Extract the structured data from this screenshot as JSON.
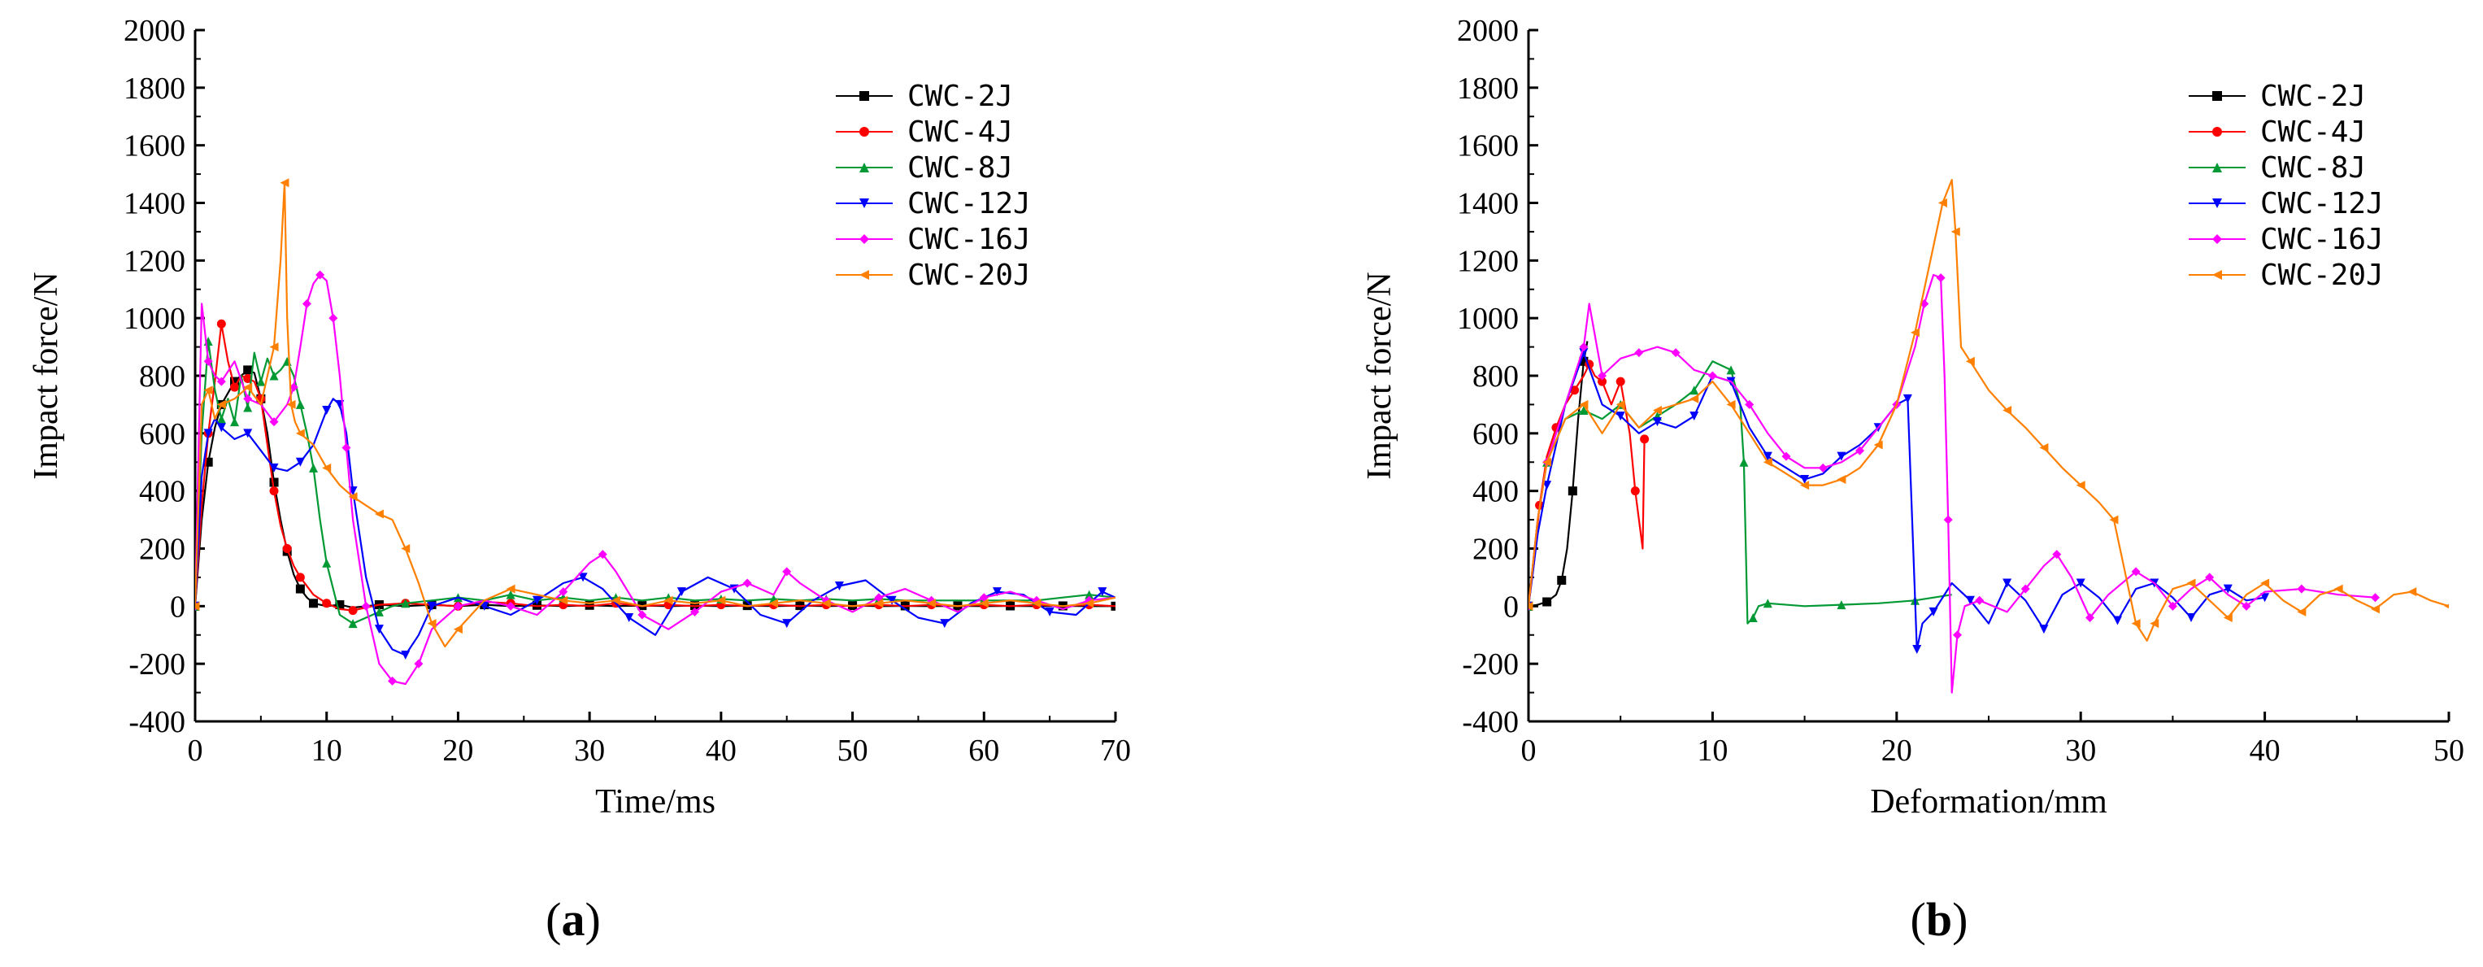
{
  "chart_data": [
    {
      "type": "line",
      "panel_label": "a",
      "xlabel": "Time/ms",
      "ylabel": "Impact force/N",
      "xlim": [
        0,
        70
      ],
      "ylim": [
        -400,
        2000
      ],
      "x_ticks": [
        0,
        10,
        20,
        30,
        40,
        50,
        60,
        70
      ],
      "y_ticks": [
        -400,
        -200,
        0,
        200,
        400,
        600,
        800,
        1000,
        1200,
        1400,
        1600,
        1800,
        2000
      ],
      "legend_position": "top-right",
      "series": [
        {
          "name": "CWC-2J",
          "color": "#000000",
          "marker": "square",
          "x": [
            0,
            0.5,
            1,
            1.5,
            2,
            2.5,
            3,
            3.5,
            4,
            4.5,
            5,
            5.5,
            6,
            6.5,
            7,
            7.5,
            8,
            8.5,
            9,
            10,
            11,
            12,
            14,
            16,
            18,
            20,
            22,
            24,
            26,
            28,
            30,
            32,
            34,
            36,
            38,
            40,
            42,
            44,
            46,
            48,
            50,
            52,
            54,
            56,
            58,
            60,
            62,
            64,
            66,
            68,
            70
          ],
          "y": [
            0,
            300,
            500,
            620,
            700,
            740,
            780,
            800,
            820,
            810,
            720,
            600,
            430,
            300,
            190,
            110,
            60,
            30,
            10,
            0,
            5,
            -5,
            5,
            0,
            5,
            0,
            5,
            0,
            3,
            0,
            3,
            0,
            2,
            0,
            2,
            0,
            2,
            0,
            2,
            0,
            2,
            0,
            1,
            0,
            1,
            0,
            1,
            0,
            1,
            0,
            0
          ]
        },
        {
          "name": "CWC-4J",
          "color": "#ff0000",
          "marker": "circle",
          "x": [
            0,
            0.5,
            1,
            1.5,
            2,
            2.5,
            3,
            3.5,
            4,
            4.5,
            5,
            5.5,
            6,
            6.5,
            7,
            7.5,
            8,
            9,
            10,
            11,
            12,
            14,
            16,
            18,
            20,
            22,
            24,
            26,
            28,
            30,
            32,
            34,
            36,
            38,
            40,
            42,
            44,
            46,
            48,
            50,
            52,
            54,
            56,
            58,
            60,
            62,
            64,
            66,
            68,
            70
          ],
          "y": [
            0,
            350,
            600,
            780,
            980,
            850,
            760,
            800,
            790,
            780,
            720,
            560,
            400,
            280,
            200,
            140,
            100,
            40,
            10,
            -10,
            -15,
            5,
            10,
            5,
            0,
            15,
            10,
            0,
            5,
            0,
            10,
            0,
            5,
            0,
            5,
            0,
            5,
            0,
            5,
            0,
            5,
            0,
            5,
            0,
            5,
            0,
            5,
            0,
            5,
            0
          ]
        },
        {
          "name": "CWC-8J",
          "color": "#009933",
          "marker": "triangle-up",
          "x": [
            0,
            0.5,
            1,
            1.5,
            2,
            2.5,
            3,
            3.5,
            4,
            4.5,
            5,
            5.5,
            6,
            6.5,
            7,
            7.5,
            8,
            8.5,
            9,
            9.5,
            10,
            11,
            12,
            13,
            14,
            15,
            16,
            18,
            20,
            22,
            24,
            26,
            28,
            30,
            32,
            34,
            36,
            38,
            40,
            42,
            44,
            46,
            48,
            50,
            52,
            54,
            56,
            58,
            60,
            62,
            64,
            66,
            68,
            70
          ],
          "y": [
            0,
            600,
            920,
            750,
            650,
            720,
            640,
            800,
            690,
            880,
            780,
            860,
            800,
            820,
            850,
            800,
            700,
            600,
            480,
            300,
            150,
            -30,
            -60,
            -40,
            -20,
            0,
            10,
            20,
            30,
            20,
            40,
            20,
            30,
            20,
            30,
            20,
            30,
            20,
            25,
            20,
            25,
            20,
            25,
            20,
            25,
            20,
            20,
            20,
            20,
            20,
            20,
            30,
            40,
            30
          ]
        },
        {
          "name": "CWC-12J",
          "color": "#0000ff",
          "marker": "triangle-down",
          "x": [
            0,
            0.5,
            1,
            1.5,
            2,
            3,
            4,
            5,
            6,
            7,
            8,
            9,
            10,
            10.5,
            11,
            11.5,
            12,
            13,
            14,
            15,
            16,
            17,
            18,
            20,
            22,
            24,
            26,
            28,
            29.5,
            31,
            33,
            35,
            37,
            39,
            41,
            43,
            45,
            47,
            49,
            51,
            53,
            55,
            57,
            59,
            61,
            63,
            65,
            67,
            69,
            70
          ],
          "y": [
            0,
            450,
            600,
            650,
            620,
            580,
            600,
            540,
            480,
            470,
            500,
            560,
            680,
            720,
            700,
            600,
            400,
            100,
            -80,
            -150,
            -170,
            -100,
            0,
            30,
            0,
            -30,
            20,
            80,
            100,
            60,
            -40,
            -100,
            50,
            100,
            60,
            -30,
            -60,
            20,
            70,
            90,
            20,
            -40,
            -60,
            10,
            50,
            40,
            -20,
            -30,
            50,
            30
          ]
        },
        {
          "name": "CWC-16J",
          "color": "#ff00ff",
          "marker": "diamond",
          "x": [
            0,
            0.5,
            1,
            1.5,
            2,
            3,
            4,
            5,
            6,
            7,
            7.5,
            8,
            8.5,
            9,
            9.5,
            10,
            10.5,
            11,
            11.5,
            12,
            13,
            14,
            15,
            16,
            17,
            18,
            20,
            22,
            24,
            26,
            28,
            30,
            31,
            32,
            34,
            36,
            38,
            40,
            42,
            44,
            45,
            46,
            48,
            50,
            52,
            54,
            56,
            58,
            60,
            62,
            64,
            66,
            68,
            70
          ],
          "y": [
            0,
            1050,
            850,
            800,
            780,
            850,
            720,
            700,
            640,
            700,
            760,
            900,
            1050,
            1120,
            1150,
            1130,
            1000,
            800,
            550,
            300,
            0,
            -200,
            -260,
            -270,
            -200,
            -80,
            0,
            20,
            0,
            -30,
            50,
            150,
            180,
            120,
            -30,
            -80,
            -20,
            50,
            80,
            40,
            120,
            80,
            20,
            -20,
            30,
            60,
            20,
            -20,
            30,
            50,
            20,
            -10,
            20,
            30
          ]
        },
        {
          "name": "CWC-20J",
          "color": "#ff8000",
          "marker": "triangle-left",
          "x": [
            0,
            0.5,
            1,
            1.5,
            2,
            3,
            4,
            5,
            6,
            6.5,
            6.8,
            7,
            7.3,
            7.6,
            8,
            9,
            10,
            11,
            12,
            13,
            14,
            15,
            16,
            17,
            18,
            19,
            20,
            22,
            24,
            26,
            28,
            30,
            32,
            34,
            36,
            38,
            40,
            42,
            44,
            46,
            48,
            50,
            52,
            54,
            56,
            58,
            60,
            62,
            64,
            66,
            68,
            70
          ],
          "y": [
            0,
            700,
            750,
            650,
            700,
            720,
            760,
            700,
            900,
            1200,
            1470,
            1000,
            700,
            640,
            600,
            560,
            480,
            420,
            380,
            350,
            320,
            300,
            200,
            80,
            -60,
            -140,
            -80,
            20,
            60,
            40,
            20,
            10,
            20,
            0,
            20,
            10,
            20,
            0,
            10,
            20,
            10,
            0,
            10,
            20,
            10,
            0,
            10,
            20,
            10,
            0,
            10,
            30
          ]
        }
      ]
    },
    {
      "type": "line",
      "panel_label": "b",
      "xlabel": "Deformation/mm",
      "ylabel": "Impact force/N",
      "xlim": [
        0,
        50
      ],
      "ylim": [
        -400,
        2000
      ],
      "x_ticks": [
        0,
        10,
        20,
        30,
        40,
        50
      ],
      "y_ticks": [
        -400,
        -200,
        0,
        200,
        400,
        600,
        800,
        1000,
        1200,
        1400,
        1600,
        1800,
        2000
      ],
      "legend_position": "top-right",
      "series": [
        {
          "name": "CWC-2J",
          "color": "#000000",
          "marker": "square",
          "x": [
            0,
            0.5,
            1,
            1.5,
            1.8,
            2.1,
            2.4,
            2.7,
            3,
            3.2
          ],
          "y": [
            0,
            5,
            15,
            40,
            90,
            200,
            400,
            650,
            850,
            920
          ]
        },
        {
          "name": "CWC-4J",
          "color": "#ff0000",
          "marker": "circle",
          "x": [
            0,
            0.3,
            0.6,
            1,
            1.5,
            2,
            2.5,
            3,
            3.3,
            3.6,
            4,
            4.5,
            5,
            5.5,
            5.8,
            6.2,
            6.3
          ],
          "y": [
            0,
            150,
            350,
            520,
            620,
            700,
            750,
            800,
            840,
            800,
            780,
            700,
            780,
            600,
            400,
            200,
            580
          ]
        },
        {
          "name": "CWC-8J",
          "color": "#009933",
          "marker": "triangle-up",
          "x": [
            0,
            0.5,
            1,
            2,
            3,
            4,
            5,
            6,
            7,
            8,
            9,
            10,
            11,
            11.5,
            11.7,
            11.9,
            12.2,
            12.5,
            13,
            15,
            17,
            19,
            21,
            23
          ],
          "y": [
            0,
            300,
            500,
            650,
            680,
            650,
            700,
            620,
            660,
            700,
            750,
            850,
            820,
            700,
            500,
            -60,
            -40,
            0,
            10,
            0,
            5,
            10,
            20,
            40
          ]
        },
        {
          "name": "CWC-12J",
          "color": "#0000ff",
          "marker": "triangle-down",
          "x": [
            0,
            0.5,
            1,
            2,
            3,
            4,
            5,
            6,
            7,
            8,
            9,
            10,
            11,
            12,
            13,
            14,
            15,
            16,
            17,
            18,
            19,
            20,
            20.6,
            20.9,
            21.1,
            21.4,
            22,
            23,
            24,
            25,
            26,
            27,
            28,
            29,
            30,
            31,
            32,
            33,
            34,
            35,
            36,
            37,
            38,
            39,
            40
          ],
          "y": [
            0,
            250,
            420,
            700,
            880,
            700,
            660,
            600,
            640,
            620,
            660,
            800,
            780,
            620,
            520,
            480,
            440,
            460,
            520,
            560,
            620,
            700,
            720,
            200,
            -150,
            -60,
            -20,
            80,
            20,
            -60,
            80,
            20,
            -80,
            40,
            80,
            30,
            -50,
            60,
            80,
            30,
            -40,
            40,
            60,
            20,
            30
          ]
        },
        {
          "name": "CWC-16J",
          "color": "#ff00ff",
          "marker": "diamond",
          "x": [
            0,
            0.5,
            1,
            2,
            3,
            3.3,
            4,
            5,
            6,
            7,
            8,
            9,
            10,
            11,
            12,
            13,
            14,
            15,
            16,
            17,
            18,
            19,
            20,
            21,
            21.5,
            22,
            22.4,
            22.6,
            22.8,
            23,
            23.3,
            23.7,
            24.5,
            26,
            27,
            28,
            28.7,
            29.5,
            30.5,
            31.5,
            33,
            34,
            35,
            36,
            37,
            38,
            39,
            40,
            42,
            44,
            46
          ],
          "y": [
            0,
            300,
            500,
            700,
            900,
            1050,
            800,
            860,
            880,
            900,
            880,
            820,
            800,
            780,
            700,
            600,
            520,
            480,
            480,
            500,
            540,
            620,
            700,
            900,
            1050,
            1150,
            1140,
            800,
            300,
            -300,
            -100,
            0,
            20,
            -20,
            60,
            140,
            180,
            100,
            -40,
            40,
            120,
            80,
            0,
            60,
            100,
            40,
            0,
            50,
            60,
            40,
            30
          ]
        },
        {
          "name": "CWC-20J",
          "color": "#ff8000",
          "marker": "triangle-left",
          "x": [
            0,
            0.5,
            1,
            2,
            3,
            4,
            5,
            6,
            7,
            8,
            9,
            10,
            11,
            12,
            13,
            14,
            15,
            16,
            17,
            18,
            19,
            20,
            21,
            22,
            22.5,
            23,
            23.2,
            23.5,
            24,
            25,
            26,
            27,
            28,
            29,
            30,
            31,
            31.8,
            32.3,
            33,
            33.6,
            34,
            35,
            36,
            37,
            38,
            39,
            40,
            41,
            42,
            43,
            44,
            45,
            46,
            47,
            48,
            49,
            50
          ],
          "y": [
            0,
            300,
            500,
            650,
            700,
            600,
            700,
            620,
            680,
            700,
            720,
            780,
            700,
            600,
            500,
            460,
            420,
            420,
            440,
            480,
            560,
            700,
            950,
            1250,
            1400,
            1480,
            1300,
            900,
            850,
            750,
            680,
            620,
            550,
            480,
            420,
            360,
            300,
            150,
            -60,
            -120,
            -60,
            60,
            80,
            20,
            -40,
            40,
            80,
            20,
            -20,
            40,
            60,
            20,
            -10,
            40,
            50,
            20,
            0
          ]
        }
      ]
    }
  ]
}
